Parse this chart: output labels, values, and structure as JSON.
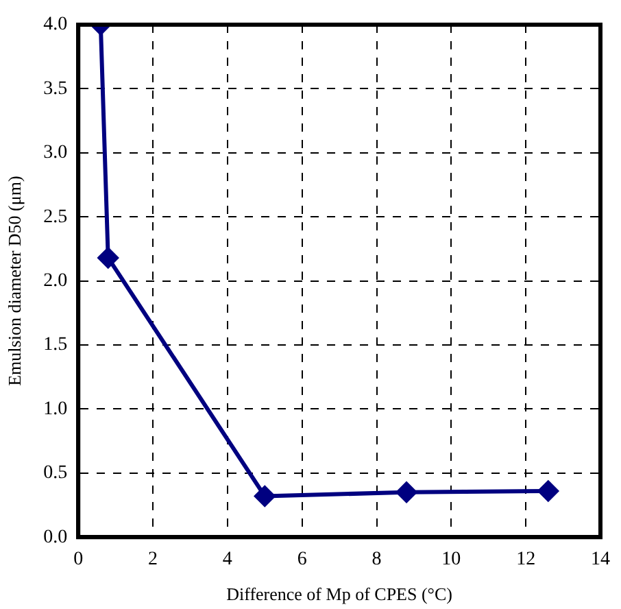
{
  "chart_data": {
    "type": "line",
    "xlabel": "Difference of Mp of CPES (°C)",
    "ylabel": "Emulsion diameter D50 (μm)",
    "x": [
      0.6,
      0.8,
      5.0,
      8.8,
      12.6
    ],
    "series": [
      {
        "color": "#000080",
        "values": [
          4.0,
          2.18,
          0.32,
          0.35,
          0.36
        ]
      }
    ],
    "xlim": [
      0,
      14
    ],
    "xticks": [
      0,
      2,
      4,
      6,
      8,
      10,
      12,
      14
    ],
    "ylim": [
      0,
      4
    ],
    "yticks": [
      {
        "value": 0,
        "label": "0.0"
      },
      {
        "value": 0.5,
        "label": "0.5"
      },
      {
        "value": 1,
        "label": "1.0"
      },
      {
        "value": 1.5,
        "label": "1.5"
      },
      {
        "value": 2,
        "label": "2.0"
      },
      {
        "value": 2.5,
        "label": "2.5"
      },
      {
        "value": 3,
        "label": "3.0"
      },
      {
        "value": 3.5,
        "label": "3.5"
      },
      {
        "value": 4,
        "label": "4.0"
      }
    ],
    "grid": true,
    "legend": false,
    "marker": "diamond",
    "line_style": "solid"
  }
}
